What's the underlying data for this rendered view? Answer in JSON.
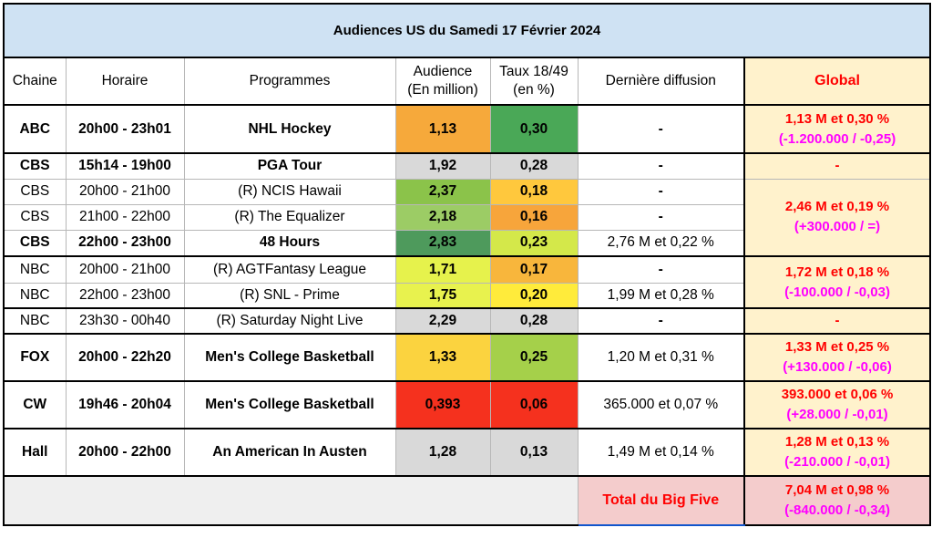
{
  "title": "Audiences US du Samedi 17 Février 2024",
  "headers": {
    "chaine": "Chaine",
    "horaire": "Horaire",
    "programmes": "Programmes",
    "audience_1": "Audience",
    "audience_2": "(En million)",
    "taux_1": "Taux 18/49",
    "taux_2": "(en %)",
    "derniere": "Dernière diffusion",
    "global": "Global"
  },
  "rows": [
    {
      "chaine": "ABC",
      "horaire": "20h00 - 23h01",
      "programme": "NHL Hockey",
      "audience": "1,13",
      "taux": "0,30",
      "derniere": "-",
      "bold": true
    },
    {
      "chaine": "CBS",
      "horaire": "15h14 - 19h00",
      "programme": "PGA Tour",
      "audience": "1,92",
      "taux": "0,28",
      "derniere": "-",
      "bold": true
    },
    {
      "chaine": "CBS",
      "horaire": "20h00 - 21h00",
      "programme": "(R) NCIS Hawaii",
      "audience": "2,37",
      "taux": "0,18",
      "derniere": "-",
      "bold": false
    },
    {
      "chaine": "CBS",
      "horaire": "21h00 - 22h00",
      "programme": "(R) The Equalizer",
      "audience": "2,18",
      "taux": "0,16",
      "derniere": "-",
      "bold": false
    },
    {
      "chaine": "CBS",
      "horaire": "22h00 - 23h00",
      "programme": "48 Hours",
      "audience": "2,83",
      "taux": "0,23",
      "derniere": "2,76 M et 0,22 %",
      "bold": true
    },
    {
      "chaine": "NBC",
      "horaire": "20h00 - 21h00",
      "programme": "(R) AGTFantasy League",
      "audience": "1,71",
      "taux": "0,17",
      "derniere": "-",
      "bold": false
    },
    {
      "chaine": "NBC",
      "horaire": "22h00 - 23h00",
      "programme": "(R) SNL - Prime",
      "audience": "1,75",
      "taux": "0,20",
      "derniere": "1,99 M et 0,28 %",
      "bold": false
    },
    {
      "chaine": "NBC",
      "horaire": "23h30 - 00h40",
      "programme": "(R) Saturday Night Live",
      "audience": "2,29",
      "taux": "0,28",
      "derniere": "-",
      "bold": false
    },
    {
      "chaine": "FOX",
      "horaire": "20h00 - 22h20",
      "programme": "Men's College Basketball",
      "audience": "1,33",
      "taux": "0,25",
      "derniere": "1,20 M et 0,31 %",
      "bold": true
    },
    {
      "chaine": "CW",
      "horaire": "19h46 - 20h04",
      "programme": "Men's College Basketball",
      "audience": "0,393",
      "taux": "0,06",
      "derniere": "365.000 et 0,07 %",
      "bold": true
    },
    {
      "chaine": "Hall",
      "horaire": "20h00 - 22h00",
      "programme": "An American In Austen",
      "audience": "1,28",
      "taux": "0,13",
      "derniere": "1,49 M et 0,14 %",
      "bold": true
    }
  ],
  "globals": {
    "abc": {
      "line1": "1,13 M et 0,30 %",
      "line2": "(-1.200.000 / -0,25)"
    },
    "cbs_pga": {
      "line1": "-"
    },
    "cbs_prime": {
      "line1": "2,46 M et 0,19 %",
      "line2": "(+300.000 / =)"
    },
    "nbc_prime": {
      "line1": "1,72 M et 0,18 %",
      "line2": "(-100.000 / -0,03)"
    },
    "nbc_late": {
      "line1": "-"
    },
    "fox": {
      "line1": "1,33 M et 0,25 %",
      "line2": "(+130.000 / -0,06)"
    },
    "cw": {
      "line1": "393.000 et 0,06 %",
      "line2": "(+28.000 / -0,01)"
    },
    "hall": {
      "line1": "1,28 M et 0,13 %",
      "line2": "(-210.000 / -0,01)"
    }
  },
  "total": {
    "label": "Total du Big Five",
    "line1": "7,04 M et 0,98 %",
    "line2": "(-840.000 / -0,34)"
  },
  "colors": {
    "abc_aud": "#f6a93b",
    "abc_taux": "#4aa857",
    "cbs_pga_aud": "#d9d9d9",
    "cbs_pga_taux": "#d9d9d9",
    "cbs_ncis_aud": "#8bc34a",
    "cbs_ncis_taux": "#ffc83d",
    "cbs_eq_aud": "#9ccc65",
    "cbs_eq_taux": "#f7a53b",
    "cbs_48_aud": "#4e9a5c",
    "cbs_48_taux": "#d4e84a",
    "nbc_agt_aud": "#e6f24c",
    "nbc_agt_taux": "#f8b63c",
    "nbc_snl_aud": "#e8f24e",
    "nbc_snl_taux": "#ffeb3b",
    "nbc_sat_aud": "#d9d9d9",
    "nbc_sat_taux": "#d9d9d9",
    "fox_aud": "#fbd33f",
    "fox_taux": "#a5d04a",
    "cw_aud": "#f5311e",
    "cw_taux": "#f5311e",
    "hall_aud": "#d9d9d9",
    "hall_taux": "#d9d9d9"
  }
}
